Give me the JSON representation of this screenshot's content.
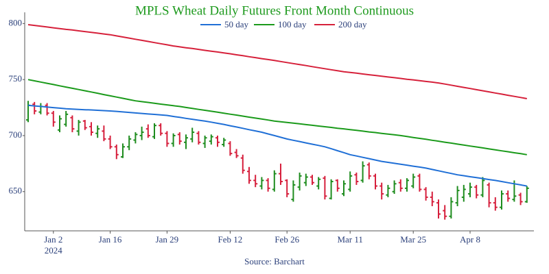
{
  "chart_data": {
    "type": "ohlc",
    "title": "MPLS Wheat Daily Futures Front Month Continuous",
    "source": "Source: Barchart",
    "x_sublabel": "2024",
    "categories": [
      null,
      null,
      null,
      null,
      "Jan 2",
      null,
      null,
      null,
      null,
      null,
      null,
      null,
      null,
      "Jan 16",
      null,
      null,
      null,
      null,
      null,
      null,
      null,
      null,
      "Jan 29",
      null,
      null,
      null,
      null,
      null,
      null,
      null,
      null,
      null,
      "Feb 12",
      null,
      null,
      null,
      null,
      null,
      null,
      null,
      null,
      "Feb 26",
      null,
      null,
      null,
      null,
      null,
      null,
      null,
      null,
      null,
      "Mar 11",
      null,
      null,
      null,
      null,
      null,
      null,
      null,
      null,
      null,
      "Mar 25",
      null,
      null,
      null,
      null,
      null,
      null,
      null,
      null,
      "Apr 8",
      null,
      null,
      null,
      null,
      null,
      null,
      null,
      null,
      null
    ],
    "up_color": "#1e8c1e",
    "down_color": "#d61f3c",
    "open": [
      714,
      728,
      721,
      727,
      720,
      705,
      710,
      716,
      704,
      713,
      708,
      702,
      704,
      697,
      690,
      681,
      690,
      696,
      700,
      706,
      699,
      709,
      702,
      693,
      701,
      694,
      697,
      702,
      693,
      695,
      698,
      692,
      693,
      685,
      680,
      668,
      660,
      655,
      660,
      652,
      666,
      660,
      643,
      654,
      658,
      663,
      655,
      662,
      644,
      660,
      648,
      652,
      665,
      660,
      674,
      664,
      655,
      647,
      650,
      658,
      653,
      655,
      664,
      652,
      645,
      640,
      633,
      628,
      640,
      645,
      648,
      654,
      647,
      656,
      640,
      636,
      648,
      643,
      647,
      641
    ],
    "high": [
      731,
      730,
      729,
      729,
      722,
      718,
      722,
      718,
      714,
      714,
      712,
      709,
      709,
      700,
      692,
      693,
      700,
      703,
      708,
      710,
      711,
      711,
      704,
      702,
      703,
      701,
      707,
      704,
      700,
      701,
      700,
      698,
      695,
      688,
      683,
      672,
      665,
      663,
      662,
      669,
      675,
      661,
      660,
      667,
      666,
      665,
      663,
      664,
      661,
      661,
      660,
      668,
      667,
      677,
      676,
      666,
      658,
      656,
      660,
      661,
      662,
      666,
      666,
      654,
      650,
      643,
      638,
      645,
      655,
      656,
      658,
      656,
      663,
      658,
      645,
      651,
      651,
      660,
      649,
      655
    ],
    "low": [
      712,
      719,
      719,
      718,
      708,
      703,
      708,
      703,
      700,
      705,
      700,
      698,
      695,
      688,
      679,
      680,
      687,
      693,
      696,
      698,
      697,
      700,
      690,
      690,
      692,
      688,
      694,
      692,
      689,
      692,
      690,
      690,
      682,
      680,
      666,
      657,
      654,
      652,
      650,
      650,
      656,
      645,
      641,
      651,
      655,
      656,
      652,
      643,
      643,
      650,
      646,
      650,
      656,
      658,
      661,
      652,
      643,
      645,
      648,
      650,
      650,
      653,
      650,
      642,
      637,
      626,
      625,
      626,
      637,
      641,
      645,
      644,
      645,
      636,
      633,
      634,
      641,
      641,
      638,
      640
    ],
    "close": [
      727,
      722,
      726,
      720,
      712,
      715,
      719,
      706,
      712,
      707,
      703,
      706,
      697,
      690,
      683,
      690,
      697,
      701,
      703,
      700,
      709,
      702,
      693,
      700,
      695,
      698,
      703,
      694,
      698,
      699,
      694,
      696,
      684,
      682,
      669,
      660,
      657,
      660,
      653,
      666,
      659,
      648,
      656,
      664,
      663,
      658,
      661,
      646,
      659,
      653,
      657,
      664,
      659,
      673,
      664,
      655,
      648,
      653,
      657,
      653,
      660,
      663,
      652,
      645,
      641,
      630,
      628,
      641,
      651,
      652,
      654,
      647,
      660,
      640,
      636,
      648,
      644,
      646,
      641,
      653
    ],
    "series": [
      {
        "name": "50 day",
        "color": "#1f6fd6",
        "values": [
          727,
          726.5,
          726,
          725.5,
          725,
          724.5,
          724,
          723.7,
          723.4,
          723.1,
          722.9,
          722.6,
          722.3,
          722,
          721.6,
          721.1,
          720.7,
          720.2,
          719.8,
          719.3,
          718.9,
          718.4,
          718,
          717.1,
          716.3,
          715.4,
          714.6,
          713.7,
          712.9,
          712,
          711,
          710,
          708.8,
          707.7,
          706.5,
          705.3,
          704.2,
          703,
          701.5,
          700,
          698.5,
          697,
          695.8,
          694.7,
          693.5,
          692.3,
          691.2,
          690,
          688.3,
          686.5,
          684.8,
          683,
          681.8,
          680.6,
          679.4,
          678.2,
          677,
          676.1,
          675.3,
          674.4,
          673.6,
          672.7,
          671.9,
          671,
          669.8,
          668.6,
          667.4,
          666.2,
          665,
          664.2,
          663.3,
          662.5,
          661.7,
          660.8,
          660,
          659,
          658,
          657,
          656,
          655
        ]
      },
      {
        "name": "100 day",
        "color": "#1a9a1a",
        "values": [
          750,
          748.9,
          747.8,
          746.7,
          745.6,
          744.4,
          743.3,
          742.2,
          741.1,
          740,
          738.9,
          737.8,
          736.6,
          735.5,
          734.4,
          733.3,
          732.1,
          731,
          730.3,
          729.6,
          728.9,
          728.1,
          727.4,
          726.7,
          726,
          725.1,
          724.3,
          723.4,
          722.6,
          721.7,
          720.9,
          720,
          719.1,
          718.3,
          717.4,
          716.5,
          715.6,
          714.8,
          713.9,
          713,
          712.4,
          711.7,
          711.1,
          710.5,
          709.8,
          709.2,
          708.5,
          707.9,
          707.3,
          706.6,
          706,
          705.3,
          704.7,
          704,
          703.3,
          702.7,
          702,
          701.3,
          700.7,
          700,
          699.2,
          698.3,
          697.5,
          696.7,
          695.8,
          695,
          694.1,
          693.3,
          692.4,
          691.6,
          690.7,
          689.9,
          689,
          688.1,
          687.3,
          686.4,
          685.6,
          684.7,
          683.9,
          683
        ]
      },
      {
        "name": "200 day",
        "color": "#d6203a",
        "values": [
          799,
          798.3,
          797.6,
          796.9,
          796.2,
          795.5,
          794.8,
          794.2,
          793.5,
          792.8,
          792.1,
          791.4,
          790.7,
          790,
          789,
          788,
          787,
          786,
          785,
          784,
          783,
          782,
          781,
          780,
          779.2,
          778.4,
          777.7,
          776.9,
          776.1,
          775.3,
          774.6,
          773.8,
          773,
          772.1,
          771.3,
          770.4,
          769.6,
          768.7,
          767.9,
          767,
          766.1,
          765.2,
          764.3,
          763.4,
          762.5,
          761.5,
          760.6,
          759.7,
          758.8,
          757.9,
          757,
          756.3,
          755.7,
          755,
          754.3,
          753.7,
          753,
          752.3,
          751.7,
          751,
          750.3,
          749.7,
          749,
          748.3,
          747.7,
          747,
          746,
          745,
          744,
          743,
          742,
          741,
          740,
          739,
          738,
          737,
          736,
          735,
          734,
          733
        ]
      }
    ],
    "ylim": [
      615,
      810
    ],
    "yticks": [
      650,
      700,
      750,
      800
    ]
  }
}
